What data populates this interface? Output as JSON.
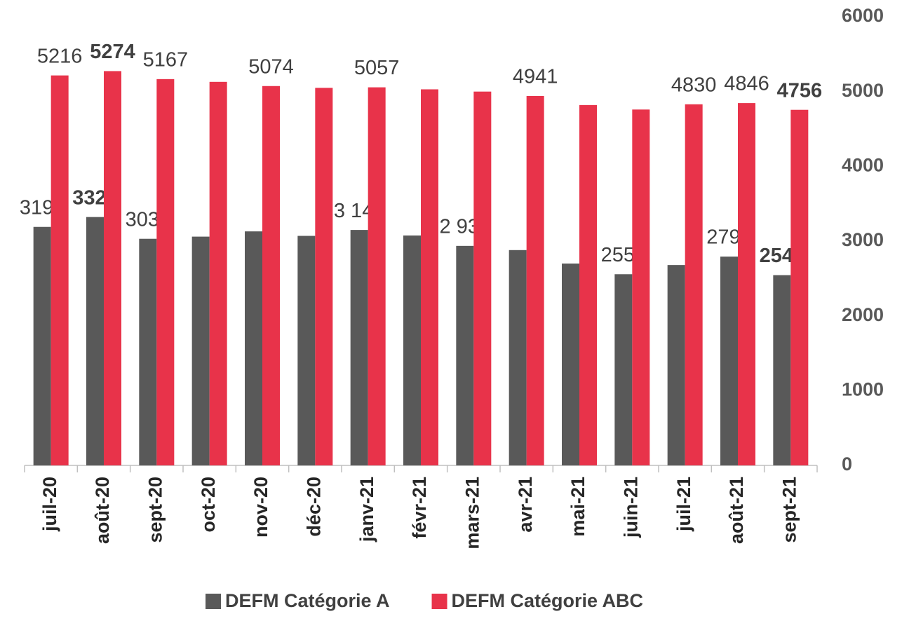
{
  "chart_data": {
    "type": "bar",
    "categories": [
      "juil-20",
      "août-20",
      "sept-20",
      "oct-20",
      "nov-20",
      "déc-20",
      "janv-21",
      "févr-21",
      "mars-21",
      "avr-21",
      "mai-21",
      "juin-21",
      "juil-21",
      "août-21",
      "sept-21"
    ],
    "series": [
      {
        "name": "DEFM Catégorie A",
        "color": "#595959",
        "values": [
          3190,
          3322,
          3031,
          3060,
          3130,
          3070,
          3149,
          3075,
          2936,
          2880,
          2700,
          2557,
          2680,
          2793,
          2545
        ],
        "value_labels": [
          "3190",
          "3322",
          "3031",
          null,
          null,
          null,
          "3 149",
          null,
          "2 936",
          null,
          null,
          "2557",
          null,
          "2793",
          "2545"
        ]
      },
      {
        "name": "DEFM Catégorie ABC",
        "color": "#e8334a",
        "values": [
          5216,
          5274,
          5167,
          5130,
          5074,
          5050,
          5057,
          5030,
          5000,
          4941,
          4820,
          4760,
          4830,
          4846,
          4756
        ],
        "value_labels": [
          "5216",
          "5274",
          "5167",
          null,
          "5074",
          null,
          "5057",
          null,
          null,
          "4941",
          null,
          null,
          "4830",
          "4846",
          "4756"
        ]
      }
    ],
    "ylim": [
      0,
      6000
    ],
    "yticks": [
      0,
      1000,
      2000,
      3000,
      4000,
      5000,
      6000
    ],
    "y_axis_side": "right",
    "grid": false
  }
}
